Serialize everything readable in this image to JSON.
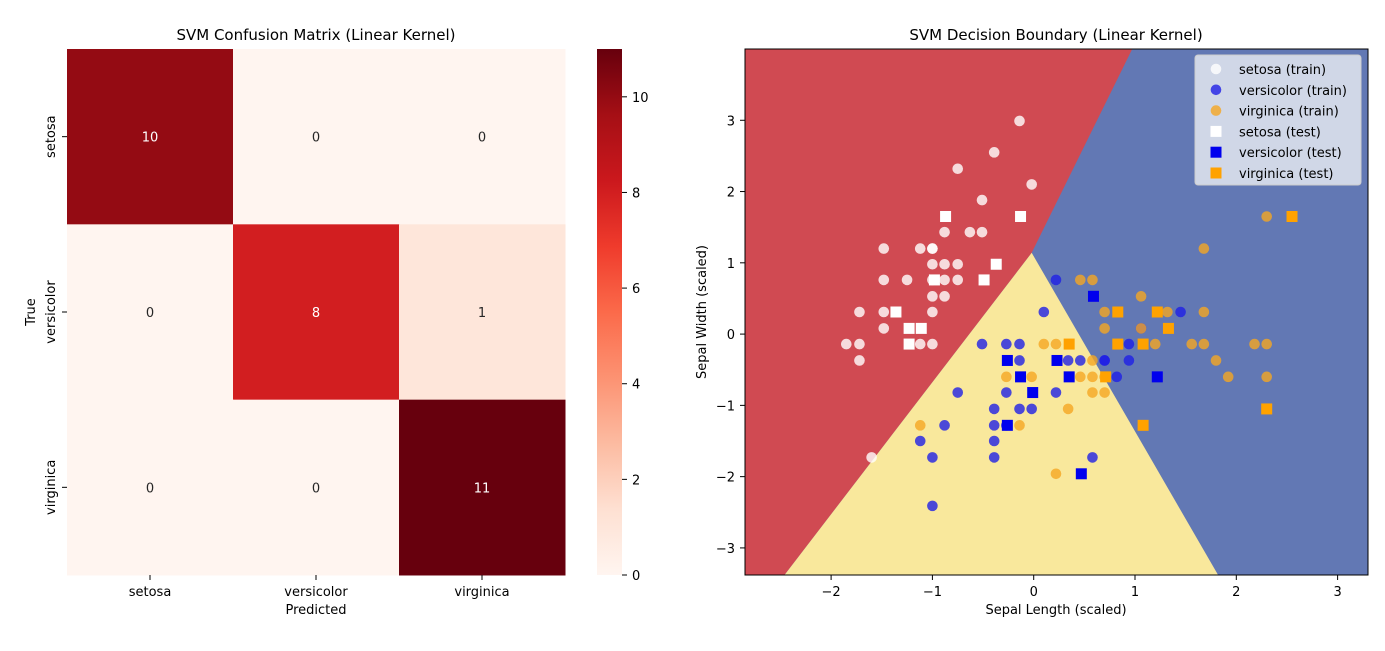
{
  "chart_data": [
    {
      "type": "heatmap",
      "title": "SVM Confusion Matrix (Linear Kernel)",
      "xlabel": "Predicted",
      "ylabel": "True",
      "x_categories": [
        "setosa",
        "versicolor",
        "virginica"
      ],
      "y_categories": [
        "setosa",
        "versicolor",
        "virginica"
      ],
      "values": [
        [
          10,
          0,
          0
        ],
        [
          0,
          8,
          1
        ],
        [
          0,
          0,
          11
        ]
      ],
      "colormap": "Reds",
      "colorbar": {
        "range": [
          0,
          11
        ],
        "ticks": [
          "0",
          "2",
          "4",
          "6",
          "8",
          "10"
        ]
      }
    },
    {
      "type": "scatter",
      "title": "SVM Decision Boundary (Linear Kernel)",
      "xlabel": "Sepal Length (scaled)",
      "ylabel": "Sepal Width (scaled)",
      "xlim": [
        -2.85,
        3.3
      ],
      "ylim": [
        -3.38,
        4.0
      ],
      "x_ticks": [
        "−2",
        "−1",
        "0",
        "1",
        "2",
        "3"
      ],
      "y_ticks": [
        "−3",
        "−2",
        "−1",
        "0",
        "1",
        "2",
        "3"
      ],
      "legend": "top-right",
      "regions": [
        {
          "class": "setosa",
          "color": "#d04a52"
        },
        {
          "class": "versicolor",
          "color": "#f9e89c"
        },
        {
          "class": "virginica",
          "color": "#6278b4"
        }
      ],
      "series": [
        {
          "name": "setosa (train)",
          "marker": "circle",
          "color": "#ffffff",
          "x": [
            -1.85,
            -1.72,
            -1.72,
            -1.72,
            -1.6,
            -1.48,
            -1.48,
            -1.48,
            -1.48,
            -1.25,
            -1.12,
            -1.12,
            -1.0,
            -1.0,
            -1.0,
            -1.0,
            -1.0,
            -1.0,
            -1.0,
            -0.88,
            -0.88,
            -0.88,
            -0.88,
            -0.75,
            -0.75,
            -0.75,
            -0.63,
            -0.51,
            -0.51,
            -0.39,
            -0.14,
            -0.02
          ],
          "y": [
            -0.14,
            -0.14,
            0.31,
            -0.37,
            -1.73,
            1.2,
            0.76,
            0.31,
            0.08,
            0.76,
            1.2,
            -0.14,
            1.2,
            0.98,
            0.76,
            0.53,
            0.31,
            -0.14,
            1.2,
            1.43,
            0.98,
            0.76,
            0.53,
            2.32,
            0.98,
            0.76,
            1.43,
            1.88,
            1.43,
            2.55,
            2.99,
            2.1
          ]
        },
        {
          "name": "versicolor (train)",
          "marker": "circle",
          "color": "#1f1fe6",
          "x": [
            -1.0,
            -1.12,
            -1.0,
            -0.88,
            -0.75,
            -0.51,
            -0.39,
            -0.39,
            -0.39,
            -0.39,
            -0.27,
            -0.27,
            -0.27,
            -0.14,
            -0.14,
            -0.14,
            -0.02,
            0.1,
            0.22,
            0.22,
            0.34,
            0.46,
            0.58,
            0.7,
            0.7,
            0.82,
            0.94,
            0.94,
            1.06,
            1.45
          ],
          "y": [
            -2.41,
            -1.5,
            -1.73,
            -1.28,
            -0.82,
            -0.14,
            -1.05,
            -1.28,
            -1.5,
            -1.73,
            -0.14,
            -0.82,
            -1.28,
            -0.14,
            -0.37,
            -1.05,
            -1.05,
            0.31,
            0.76,
            -0.82,
            -0.37,
            -0.37,
            -1.73,
            -0.37,
            -0.37,
            -0.6,
            -0.14,
            -0.37,
            0.08,
            0.31
          ]
        },
        {
          "name": "virginica (train)",
          "marker": "circle",
          "color": "#f5a623",
          "x": [
            -1.12,
            -0.27,
            -0.14,
            -0.02,
            0.1,
            0.22,
            0.22,
            0.34,
            0.46,
            0.46,
            0.58,
            0.58,
            0.58,
            0.58,
            0.7,
            0.7,
            0.7,
            0.7,
            1.06,
            1.06,
            1.2,
            1.32,
            1.56,
            1.68,
            1.68,
            1.68,
            1.8,
            1.92,
            2.18,
            2.3,
            2.3,
            2.3
          ],
          "y": [
            -1.28,
            -0.6,
            -1.28,
            -0.6,
            -0.14,
            -0.14,
            -1.96,
            -1.05,
            0.76,
            -0.6,
            0.76,
            -0.37,
            -0.6,
            -0.82,
            0.31,
            0.08,
            -0.6,
            -0.82,
            0.53,
            0.08,
            -0.14,
            0.31,
            -0.14,
            1.2,
            0.31,
            -0.14,
            -0.37,
            -0.6,
            -0.14,
            1.65,
            -0.14,
            -0.6
          ]
        },
        {
          "name": "setosa (test)",
          "marker": "square",
          "color": "#ffffff",
          "x": [
            -1.36,
            -1.23,
            -1.23,
            -1.11,
            -0.98,
            -0.87,
            -0.49,
            -0.37,
            -0.13
          ],
          "y": [
            0.31,
            0.08,
            -0.14,
            0.08,
            0.76,
            1.65,
            0.76,
            0.98,
            1.65
          ]
        },
        {
          "name": "versicolor (test)",
          "marker": "square",
          "color": "#0000ee",
          "x": [
            -0.26,
            -0.26,
            -0.13,
            -0.01,
            0.23,
            0.35,
            0.47,
            0.59,
            1.22
          ],
          "y": [
            -0.37,
            -1.28,
            -0.6,
            -0.82,
            -0.37,
            -0.6,
            -1.96,
            0.53,
            -0.6
          ]
        },
        {
          "name": "virginica (test)",
          "marker": "square",
          "color": "#ffa200",
          "x": [
            0.35,
            0.71,
            0.83,
            0.83,
            1.08,
            1.08,
            1.22,
            1.33,
            2.55,
            2.3
          ],
          "y": [
            -0.14,
            -0.6,
            0.31,
            -0.14,
            -0.14,
            -1.28,
            0.31,
            0.08,
            1.65,
            -1.05
          ]
        }
      ]
    }
  ]
}
